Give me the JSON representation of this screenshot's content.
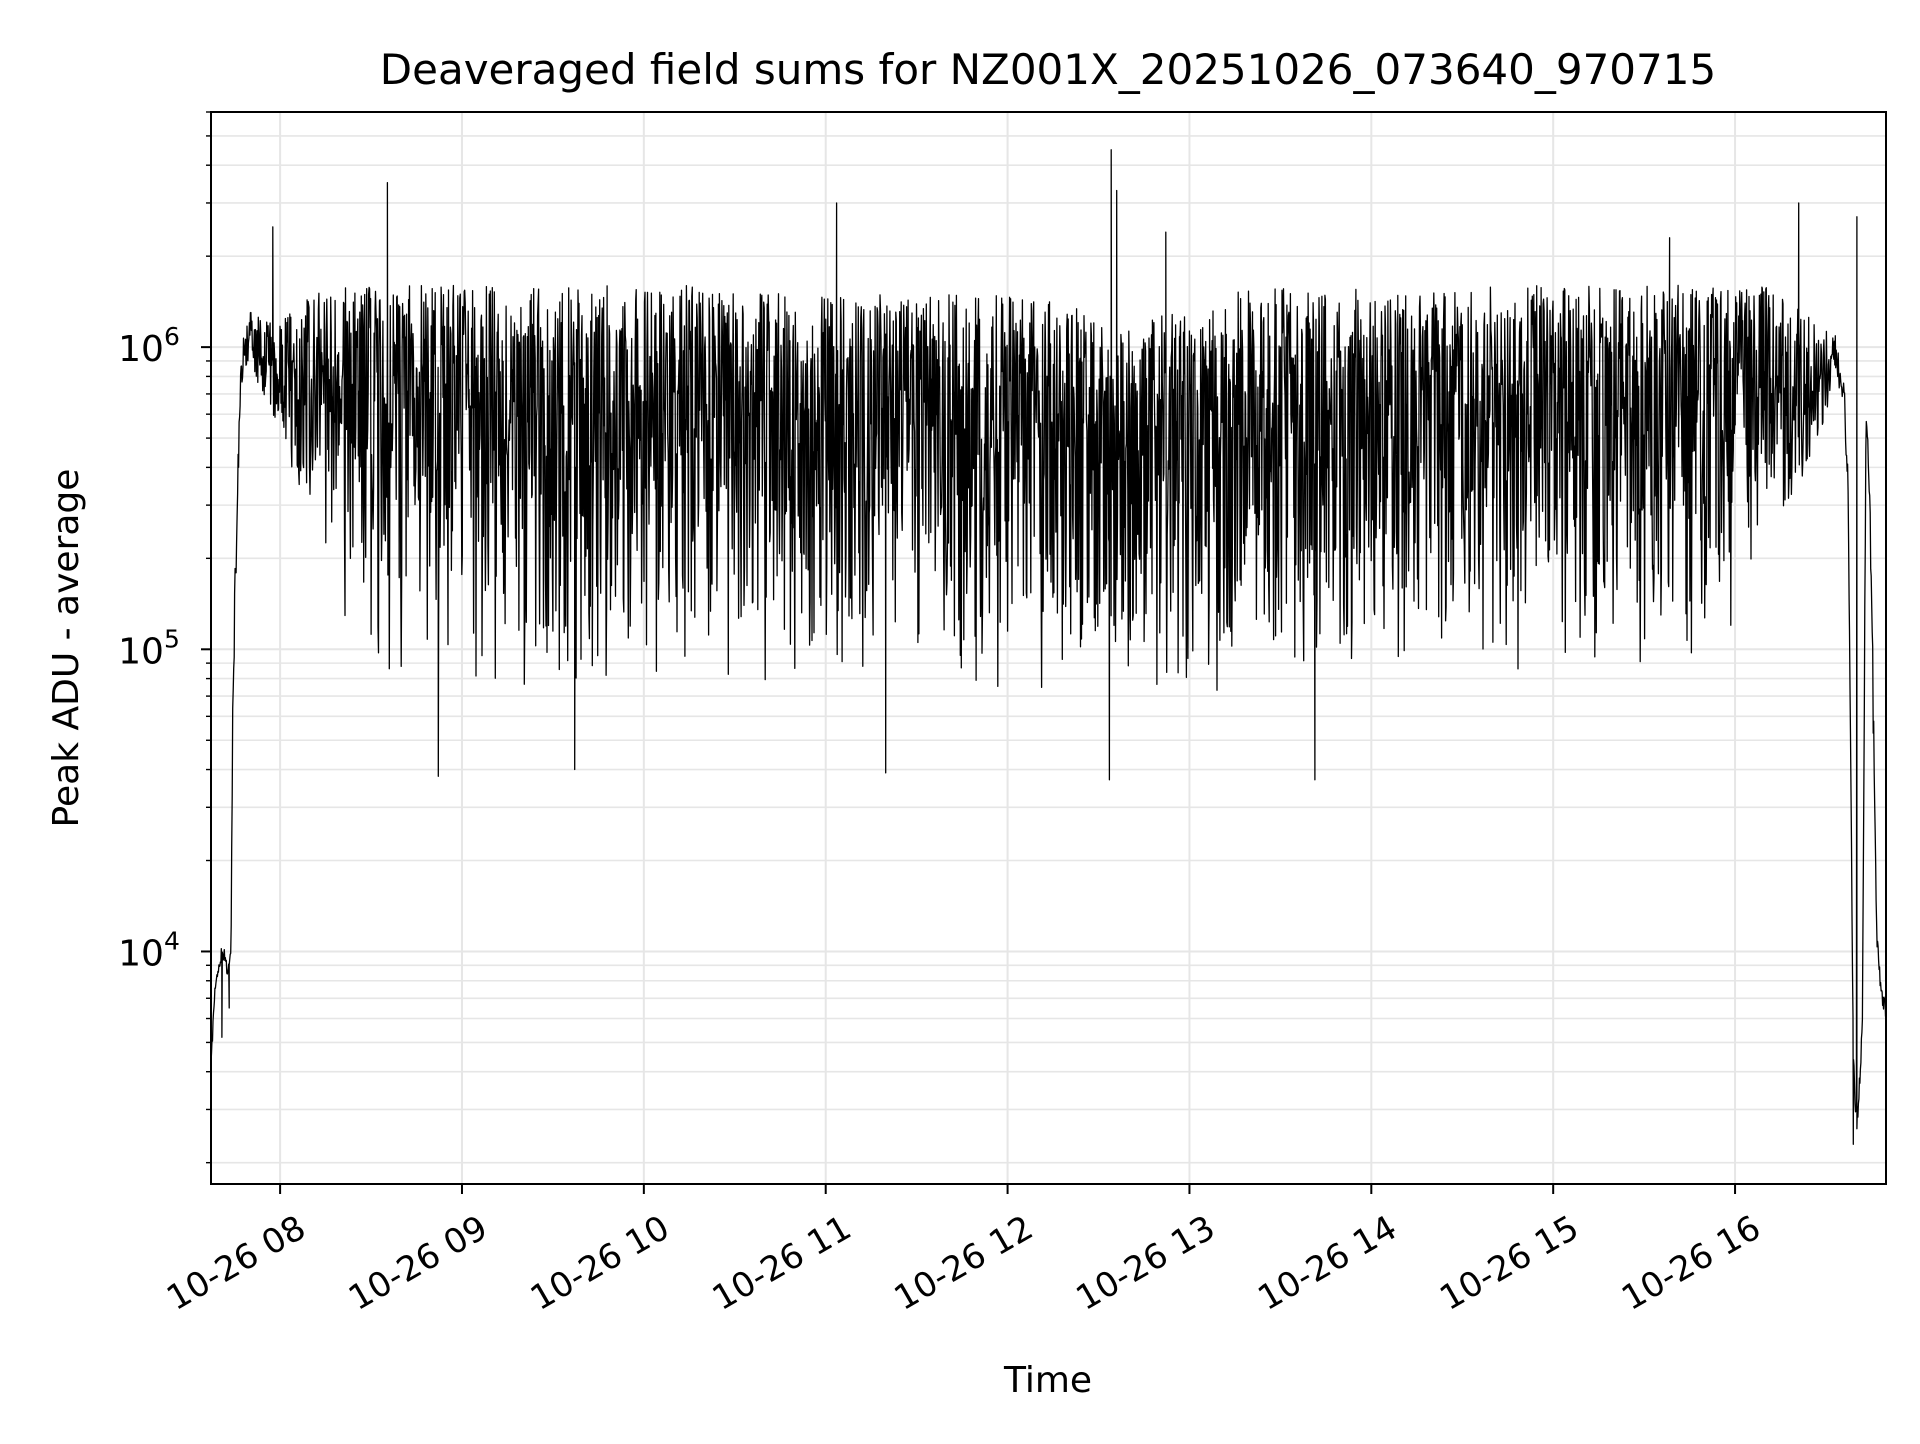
{
  "chart_data": {
    "type": "line",
    "title": "Deaveraged field sums for NZ001X_20251026_073640_970715",
    "xlabel": "Time",
    "ylabel": "Peak ADU - average",
    "yscale": "log",
    "ylim": [
      1700,
      6000000
    ],
    "xlim_hours": [
      7.62,
      16.83
    ],
    "grid": true,
    "line_color": "#000000",
    "grid_color": "#e6e6e6",
    "x_ticks": [
      {
        "label": "10-26 08",
        "hour": 8
      },
      {
        "label": "10-26 09",
        "hour": 9
      },
      {
        "label": "10-26 10",
        "hour": 10
      },
      {
        "label": "10-26 11",
        "hour": 11
      },
      {
        "label": "10-26 12",
        "hour": 12
      },
      {
        "label": "10-26 13",
        "hour": 13
      },
      {
        "label": "10-26 14",
        "hour": 14
      },
      {
        "label": "10-26 15",
        "hour": 15
      },
      {
        "label": "10-26 16",
        "hour": 16
      }
    ],
    "y_ticks": [
      {
        "base": "10",
        "exp": "4",
        "value": 10000
      },
      {
        "base": "10",
        "exp": "5",
        "value": 100000
      },
      {
        "base": "10",
        "exp": "6",
        "value": 1000000
      }
    ],
    "series": [
      {
        "name": "deaveraged field sum",
        "time_hours": [
          7.62,
          7.64,
          7.66,
          7.68,
          7.7,
          7.71,
          7.73,
          7.74,
          7.76,
          7.78,
          7.8,
          7.83,
          7.86,
          7.9,
          7.95,
          8.0,
          8.15,
          8.3,
          8.5,
          8.75,
          9.0,
          9.3,
          9.6,
          10.0,
          10.4,
          10.8,
          11.2,
          11.6,
          12.0,
          12.3,
          12.6,
          12.9,
          13.2,
          13.5,
          13.8,
          14.1,
          14.4,
          14.7,
          15.0,
          15.3,
          15.6,
          15.9,
          16.2,
          16.4,
          16.5,
          16.55,
          16.58,
          16.6,
          16.62,
          16.63,
          16.64,
          16.65,
          16.66,
          16.67,
          16.68,
          16.7,
          16.72,
          16.74,
          16.76,
          16.78,
          16.8,
          16.83
        ],
        "envelope_low": [
          4000,
          7000,
          8500,
          9500,
          9000,
          8000,
          10000,
          60000,
          200000,
          600000,
          800000,
          900000,
          800000,
          700000,
          600000,
          500000,
          300000,
          150000,
          80000,
          70000,
          70000,
          70000,
          60000,
          70000,
          70000,
          70000,
          70000,
          70000,
          70000,
          60000,
          65000,
          65000,
          60000,
          55000,
          60000,
          70000,
          75000,
          70000,
          70000,
          70000,
          75000,
          100000,
          200000,
          400000,
          600000,
          800000,
          700000,
          600000,
          300000,
          100000,
          20000,
          4000,
          3000,
          2500,
          3000,
          5000,
          500000,
          300000,
          50000,
          10000,
          7000,
          6000
        ],
        "envelope_high": [
          4500,
          7500,
          9000,
          10500,
          10000,
          8500,
          10500,
          80000,
          300000,
          800000,
          1100000,
          1300000,
          1350000,
          1300000,
          1200000,
          1200000,
          1500000,
          1600000,
          1600000,
          1600000,
          1600000,
          1600000,
          1600000,
          1600000,
          1600000,
          1550000,
          1500000,
          1500000,
          1500000,
          1400000,
          1200000,
          1300000,
          1500000,
          1600000,
          1600000,
          1500000,
          1550000,
          1600000,
          1600000,
          1600000,
          1600000,
          1650000,
          1600000,
          1300000,
          1150000,
          1100000,
          900000,
          800000,
          400000,
          120000,
          25000,
          5000,
          3500,
          3000,
          3500,
          6000,
          650000,
          400000,
          80000,
          12000,
          8000,
          7000
        ],
        "spikes": [
          {
            "hour": 7.96,
            "value": 2500000
          },
          {
            "hour": 8.59,
            "value": 3500000
          },
          {
            "hour": 11.06,
            "value": 3000000
          },
          {
            "hour": 12.57,
            "value": 4500000
          },
          {
            "hour": 12.6,
            "value": 3300000
          },
          {
            "hour": 12.87,
            "value": 2400000
          },
          {
            "hour": 15.64,
            "value": 2300000
          },
          {
            "hour": 16.35,
            "value": 3000000
          },
          {
            "hour": 16.67,
            "value": 2700000
          }
        ],
        "dips": [
          {
            "hour": 7.68,
            "value": 5200
          },
          {
            "hour": 7.72,
            "value": 6500
          },
          {
            "hour": 8.87,
            "value": 38000
          },
          {
            "hour": 9.62,
            "value": 40000
          },
          {
            "hour": 11.33,
            "value": 39000
          },
          {
            "hour": 12.56,
            "value": 37000
          },
          {
            "hour": 13.69,
            "value": 37000
          },
          {
            "hour": 16.65,
            "value": 2300
          }
        ]
      }
    ]
  }
}
